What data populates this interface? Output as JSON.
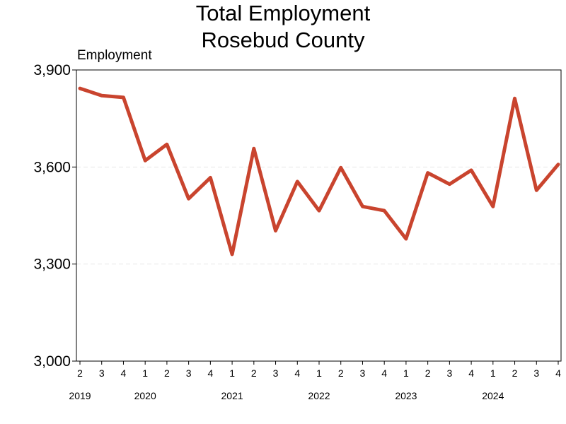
{
  "chart_data": {
    "type": "line",
    "title": "Total Employment",
    "subtitle": "Rosebud County",
    "ylabel": "Employment",
    "ylim": [
      3000,
      3900
    ],
    "yticks": [
      3000,
      3300,
      3600,
      3900
    ],
    "ytick_labels": [
      "3,000",
      "3,300",
      "3,600",
      "3,900"
    ],
    "grid": true,
    "color": "#c9442e",
    "x": [
      "2019 Q2",
      "2019 Q3",
      "2019 Q4",
      "2020 Q1",
      "2020 Q2",
      "2020 Q3",
      "2020 Q4",
      "2021 Q1",
      "2021 Q2",
      "2021 Q3",
      "2021 Q4",
      "2022 Q1",
      "2022 Q2",
      "2022 Q3",
      "2022 Q4",
      "2023 Q1",
      "2023 Q2",
      "2023 Q3",
      "2023 Q4",
      "2024 Q1",
      "2024 Q2",
      "2024 Q3",
      "2024 Q4"
    ],
    "quarter_labels": [
      "2",
      "3",
      "4",
      "1",
      "2",
      "3",
      "4",
      "1",
      "2",
      "3",
      "4",
      "1",
      "2",
      "3",
      "4",
      "1",
      "2",
      "3",
      "4",
      "1",
      "2",
      "3",
      "4"
    ],
    "years": [
      {
        "label": "2019",
        "start_index": 0
      },
      {
        "label": "2020",
        "start_index": 3
      },
      {
        "label": "2021",
        "start_index": 7
      },
      {
        "label": "2022",
        "start_index": 11
      },
      {
        "label": "2023",
        "start_index": 15
      },
      {
        "label": "2024",
        "start_index": 19
      }
    ],
    "series": [
      {
        "values": [
          3843,
          3821,
          3815,
          3620,
          3670,
          3502,
          3567,
          3330,
          3657,
          3403,
          3555,
          3465,
          3598,
          3478,
          3465,
          3378,
          3582,
          3547,
          3590,
          3478,
          3812,
          3528,
          3608
        ]
      }
    ]
  }
}
